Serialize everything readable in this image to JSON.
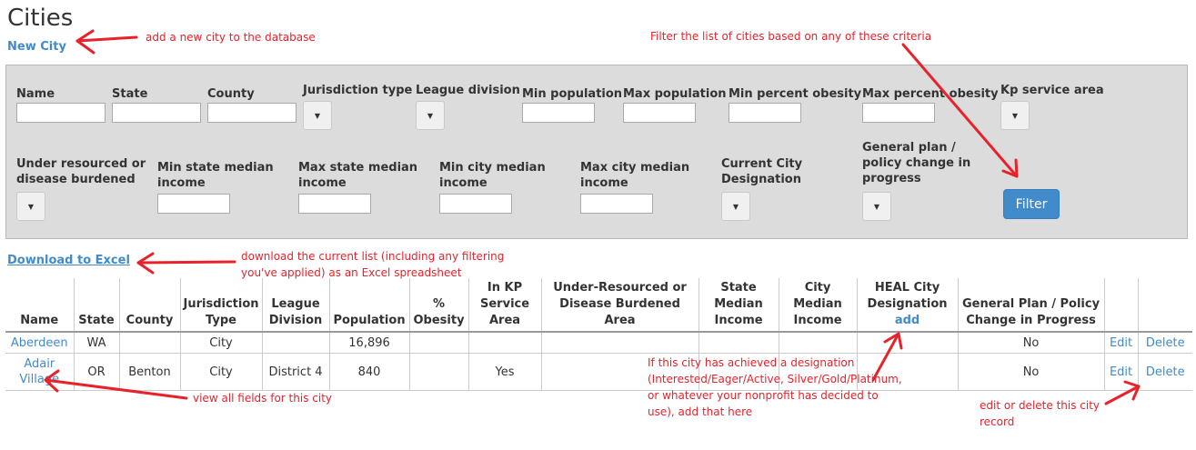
{
  "page": {
    "title": "Cities",
    "new_city_label": "New City",
    "download_label": "Download to Excel"
  },
  "filters": {
    "name": "Name",
    "state": "State",
    "county": "County",
    "jurisdiction_type": "Jurisdiction type",
    "league_division": "League division",
    "min_population": "Min population",
    "max_population": "Max population",
    "min_percent_obesity": "Min percent obesity",
    "max_percent_obesity": "Max percent obesity",
    "kp_service_area": "Kp service area",
    "under_resourced": "Under resourced or disease burdened",
    "min_state_median_income": "Min state median income",
    "max_state_median_income": "Max state median income",
    "min_city_median_income": "Min city median income",
    "max_city_median_income": "Max city median income",
    "current_city_designation": "Current City Designation",
    "general_plan": "General plan / policy change in progress",
    "filter_button": "Filter",
    "dropdown_icon": "caret-down-icon"
  },
  "table": {
    "headers": [
      "Name",
      "State",
      "County",
      "Jurisdiction Type",
      "League Division",
      "Population",
      "% Obesity",
      "In KP Service Area",
      "Under-Resourced or Disease Burdened Area",
      "State Median Income",
      "City Median Income",
      "HEAL City Designation",
      "General Plan / Policy Change in Progress",
      "",
      ""
    ],
    "heal_add_link": "add",
    "rows": [
      {
        "name": "Aberdeen",
        "state": "WA",
        "county": "",
        "jurisdiction": "City",
        "league": "",
        "population": "16,896",
        "obesity": "",
        "kp": "",
        "under": "",
        "state_income": "",
        "city_income": "",
        "heal": "",
        "plan": "No",
        "edit": "Edit",
        "delete": "Delete"
      },
      {
        "name": "Adair Village",
        "state": "OR",
        "county": "Benton",
        "jurisdiction": "City",
        "league": "District 4",
        "population": "840",
        "obesity": "",
        "kp": "Yes",
        "under": "",
        "state_income": "",
        "city_income": "",
        "heal": "",
        "plan": "No",
        "edit": "Edit",
        "delete": "Delete"
      }
    ]
  },
  "annotations": {
    "new_city": "add a new city to the database",
    "filter": "Filter the list of cities based on any of these criteria",
    "download": "download the current list (including any filtering you've applied) as an Excel spreadsheet",
    "view": "view all fields for this city",
    "heal": "If this city has achieved a designation (Interested/Eager/Active, Silver/Gold/Platinum, or whatever your nonprofit has decided to use), add that here",
    "edit_delete": "edit or delete this city record"
  },
  "colors": {
    "link": "#428bca",
    "annotation": "#e8222a",
    "panel": "#dcdcdc",
    "button": "#428bca"
  }
}
